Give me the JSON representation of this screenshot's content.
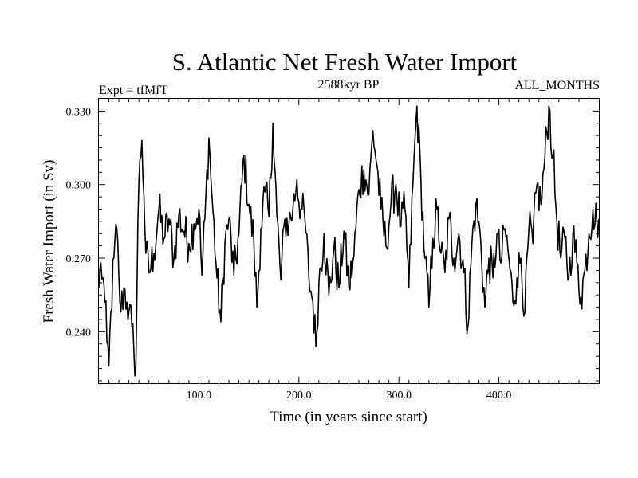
{
  "chart_data": {
    "type": "line",
    "title": "S. Atlantic Net Fresh Water Import",
    "subtitle_left": "Expt = tfMfT",
    "subtitle_center": "2588kyr BP",
    "subtitle_right": "ALL_MONTHS",
    "xlabel": "Time (in years since start)",
    "ylabel": "Fresh Water Import (in Sv)",
    "xlim": [
      0,
      500
    ],
    "ylim": [
      0.219,
      0.335
    ],
    "x_ticks": [
      100,
      200,
      300,
      400
    ],
    "x_tick_labels": [
      "100.0",
      "200.0",
      "300.0",
      "400.0"
    ],
    "y_ticks": [
      0.24,
      0.27,
      0.3,
      0.33
    ],
    "y_tick_labels": [
      "0.240",
      "0.270",
      "0.300",
      "0.330"
    ],
    "grid": false,
    "series": [
      {
        "name": "Fresh Water Import",
        "x_start": 0,
        "x_step": 1,
        "anchors": [
          [
            0,
            0.258
          ],
          [
            2,
            0.268
          ],
          [
            4,
            0.262
          ],
          [
            6,
            0.252
          ],
          [
            8,
            0.236
          ],
          [
            10,
            0.226
          ],
          [
            12,
            0.248
          ],
          [
            15,
            0.27
          ],
          [
            18,
            0.282
          ],
          [
            20,
            0.262
          ],
          [
            22,
            0.248
          ],
          [
            25,
            0.258
          ],
          [
            28,
            0.252
          ],
          [
            30,
            0.248
          ],
          [
            33,
            0.242
          ],
          [
            35,
            0.232
          ],
          [
            37,
            0.226
          ],
          [
            39,
            0.285
          ],
          [
            41,
            0.31
          ],
          [
            43,
            0.318
          ],
          [
            45,
            0.296
          ],
          [
            47,
            0.272
          ],
          [
            50,
            0.264
          ],
          [
            55,
            0.272
          ],
          [
            60,
            0.29
          ],
          [
            65,
            0.278
          ],
          [
            70,
            0.286
          ],
          [
            75,
            0.27
          ],
          [
            80,
            0.288
          ],
          [
            85,
            0.281
          ],
          [
            90,
            0.276
          ],
          [
            95,
            0.284
          ],
          [
            100,
            0.29
          ],
          [
            103,
            0.263
          ],
          [
            106,
            0.286
          ],
          [
            110,
            0.319
          ],
          [
            113,
            0.296
          ],
          [
            118,
            0.262
          ],
          [
            122,
            0.244
          ],
          [
            126,
            0.276
          ],
          [
            130,
            0.286
          ],
          [
            135,
            0.263
          ],
          [
            140,
            0.28
          ],
          [
            145,
            0.312
          ],
          [
            150,
            0.292
          ],
          [
            155,
            0.276
          ],
          [
            158,
            0.25
          ],
          [
            162,
            0.282
          ],
          [
            166,
            0.297
          ],
          [
            170,
            0.287
          ],
          [
            174,
            0.325
          ],
          [
            178,
            0.287
          ],
          [
            182,
            0.261
          ],
          [
            186,
            0.286
          ],
          [
            190,
            0.284
          ],
          [
            194,
            0.29
          ],
          [
            198,
            0.302
          ],
          [
            202,
            0.29
          ],
          [
            206,
            0.286
          ],
          [
            210,
            0.262
          ],
          [
            214,
            0.252
          ],
          [
            217,
            0.234
          ],
          [
            220,
            0.26
          ],
          [
            225,
            0.28
          ],
          [
            230,
            0.255
          ],
          [
            235,
            0.274
          ],
          [
            240,
            0.258
          ],
          [
            245,
            0.281
          ],
          [
            250,
            0.258
          ],
          [
            255,
            0.271
          ],
          [
            260,
            0.298
          ],
          [
            265,
            0.306
          ],
          [
            270,
            0.296
          ],
          [
            274,
            0.322
          ],
          [
            278,
            0.308
          ],
          [
            282,
            0.29
          ],
          [
            287,
            0.275
          ],
          [
            292,
            0.292
          ],
          [
            297,
            0.3
          ],
          [
            302,
            0.283
          ],
          [
            306,
            0.29
          ],
          [
            310,
            0.258
          ],
          [
            314,
            0.3
          ],
          [
            318,
            0.332
          ],
          [
            322,
            0.302
          ],
          [
            326,
            0.27
          ],
          [
            330,
            0.25
          ],
          [
            334,
            0.278
          ],
          [
            338,
            0.29
          ],
          [
            342,
            0.272
          ],
          [
            346,
            0.264
          ],
          [
            350,
            0.286
          ],
          [
            355,
            0.27
          ],
          [
            360,
            0.28
          ],
          [
            365,
            0.264
          ],
          [
            369,
            0.242
          ],
          [
            373,
            0.276
          ],
          [
            377,
            0.292
          ],
          [
            382,
            0.276
          ],
          [
            386,
            0.25
          ],
          [
            390,
            0.27
          ],
          [
            394,
            0.262
          ],
          [
            398,
            0.28
          ],
          [
            402,
            0.268
          ],
          [
            406,
            0.282
          ],
          [
            410,
            0.27
          ],
          [
            414,
            0.252
          ],
          [
            418,
            0.262
          ],
          [
            422,
            0.27
          ],
          [
            426,
            0.248
          ],
          [
            430,
            0.282
          ],
          [
            434,
            0.276
          ],
          [
            438,
            0.3
          ],
          [
            442,
            0.292
          ],
          [
            446,
            0.311
          ],
          [
            450,
            0.332
          ],
          [
            454,
            0.312
          ],
          [
            458,
            0.285
          ],
          [
            462,
            0.27
          ],
          [
            466,
            0.278
          ],
          [
            470,
            0.262
          ],
          [
            474,
            0.28
          ],
          [
            478,
            0.268
          ],
          [
            482,
            0.254
          ],
          [
            486,
            0.265
          ],
          [
            490,
            0.28
          ],
          [
            494,
            0.29
          ],
          [
            498,
            0.285
          ],
          [
            500,
            0.286
          ]
        ]
      }
    ]
  }
}
